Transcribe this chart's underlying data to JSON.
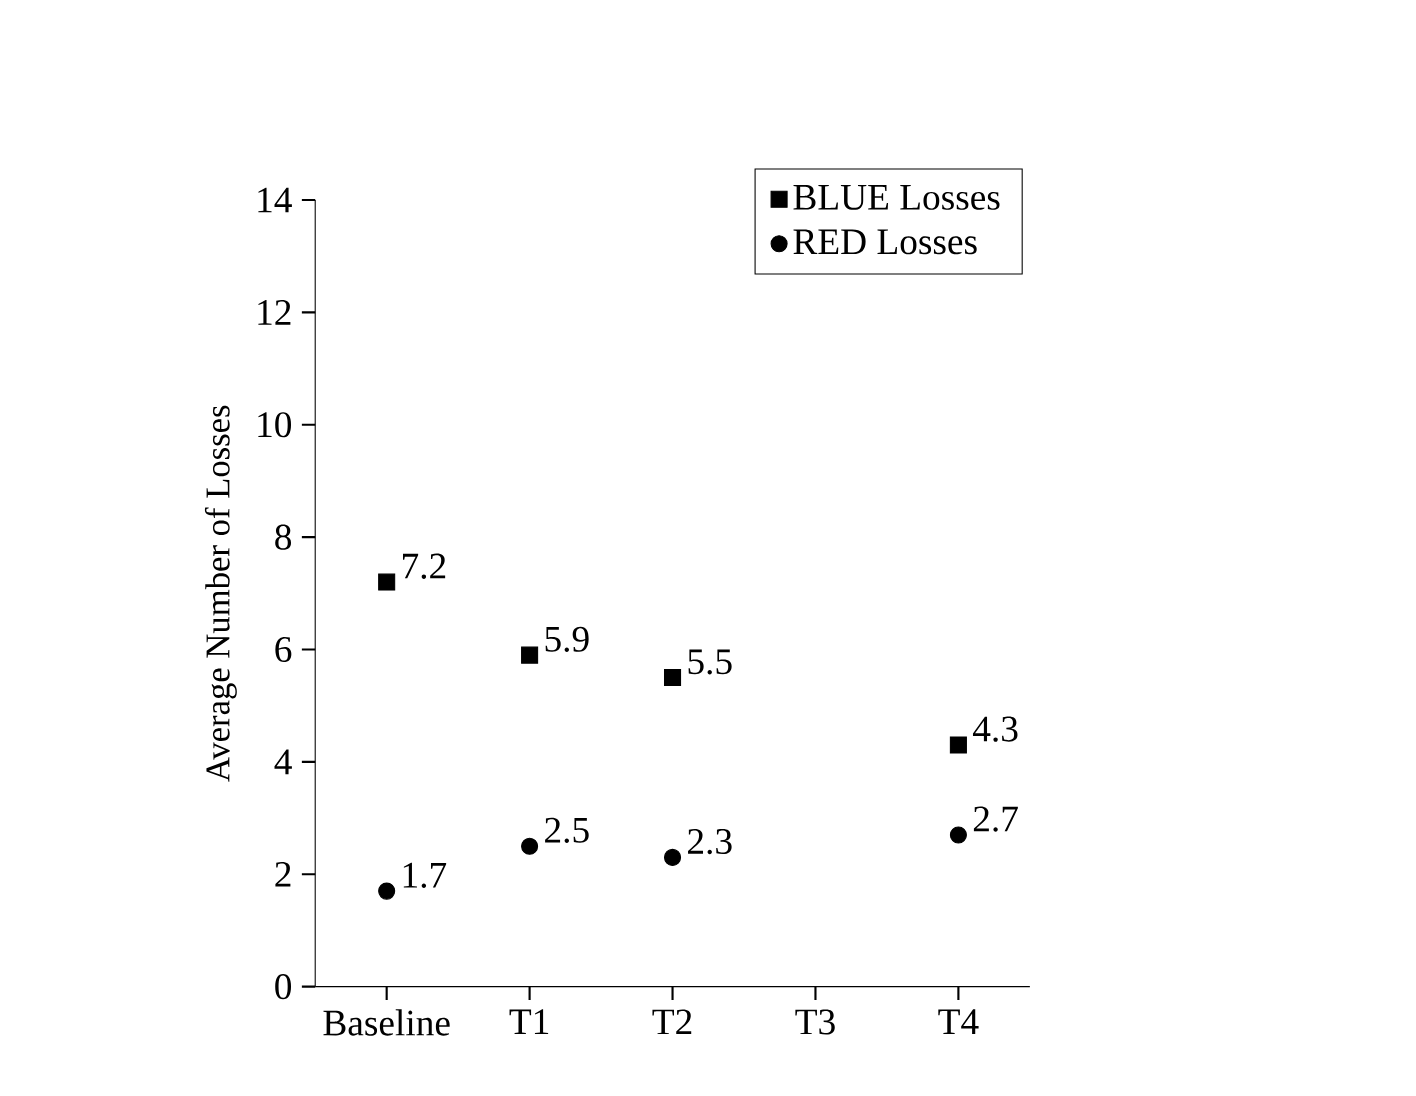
{
  "chart_data": {
    "type": "scatter",
    "ylabel": "Average Number of Losses",
    "categories": [
      "Baseline",
      "T1",
      "T2",
      "T3",
      "T4"
    ],
    "series": [
      {
        "name": "BLUE  Losses",
        "color": "#000000",
        "marker": "square",
        "values": [
          7.2,
          5.9,
          5.5,
          null,
          4.3
        ]
      },
      {
        "name": "RED  Losses",
        "color": "#000000",
        "marker": "circle",
        "values": [
          1.7,
          2.5,
          2.3,
          null,
          2.7
        ]
      }
    ],
    "ylim": [
      0,
      14
    ],
    "yticks": [
      0,
      2,
      4,
      6,
      8,
      10,
      12,
      14
    ],
    "data_labels": true,
    "legend": "top right",
    "grid": false
  }
}
